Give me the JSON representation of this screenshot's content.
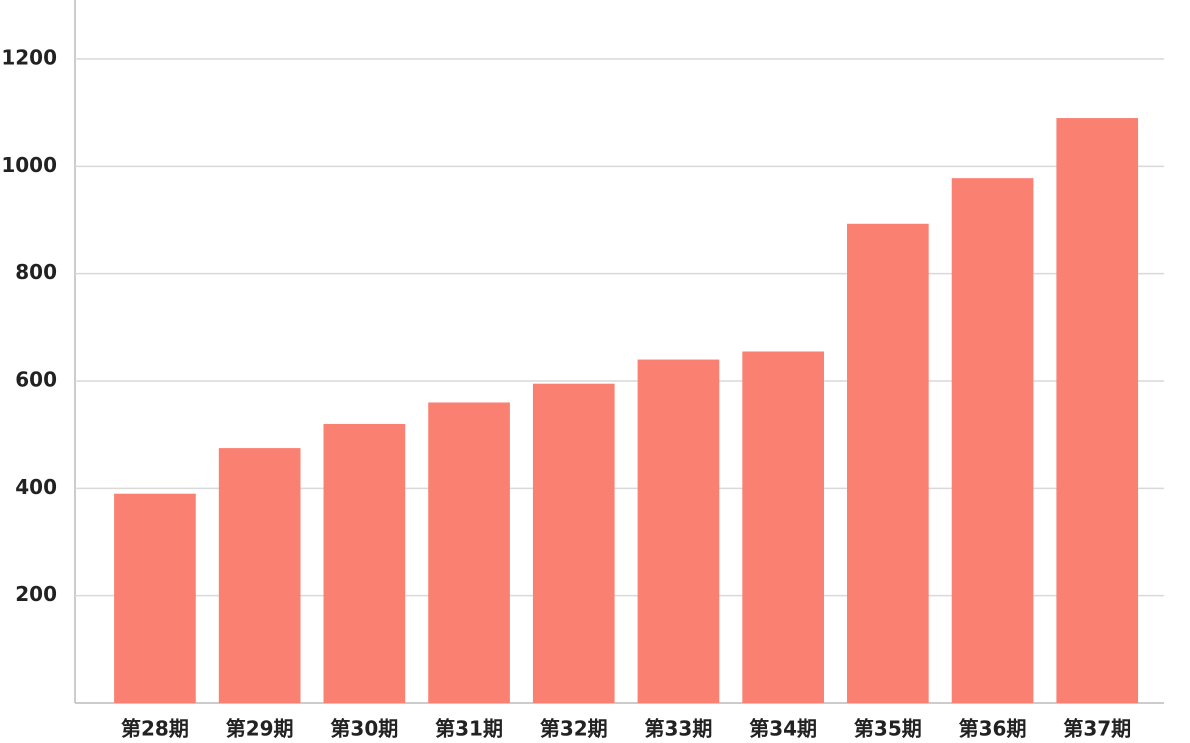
{
  "chart_data": {
    "type": "bar",
    "categories": [
      "第28期",
      "第29期",
      "第30期",
      "第31期",
      "第32期",
      "第33期",
      "第34期",
      "第35期",
      "第36期",
      "第37期"
    ],
    "values": [
      390,
      475,
      520,
      560,
      595,
      640,
      655,
      893,
      978,
      1090
    ],
    "color": "#fa8072",
    "ylim": [
      0,
      1310
    ],
    "yticks": [
      200,
      400,
      600,
      800,
      1000,
      1200
    ],
    "grid": true
  }
}
